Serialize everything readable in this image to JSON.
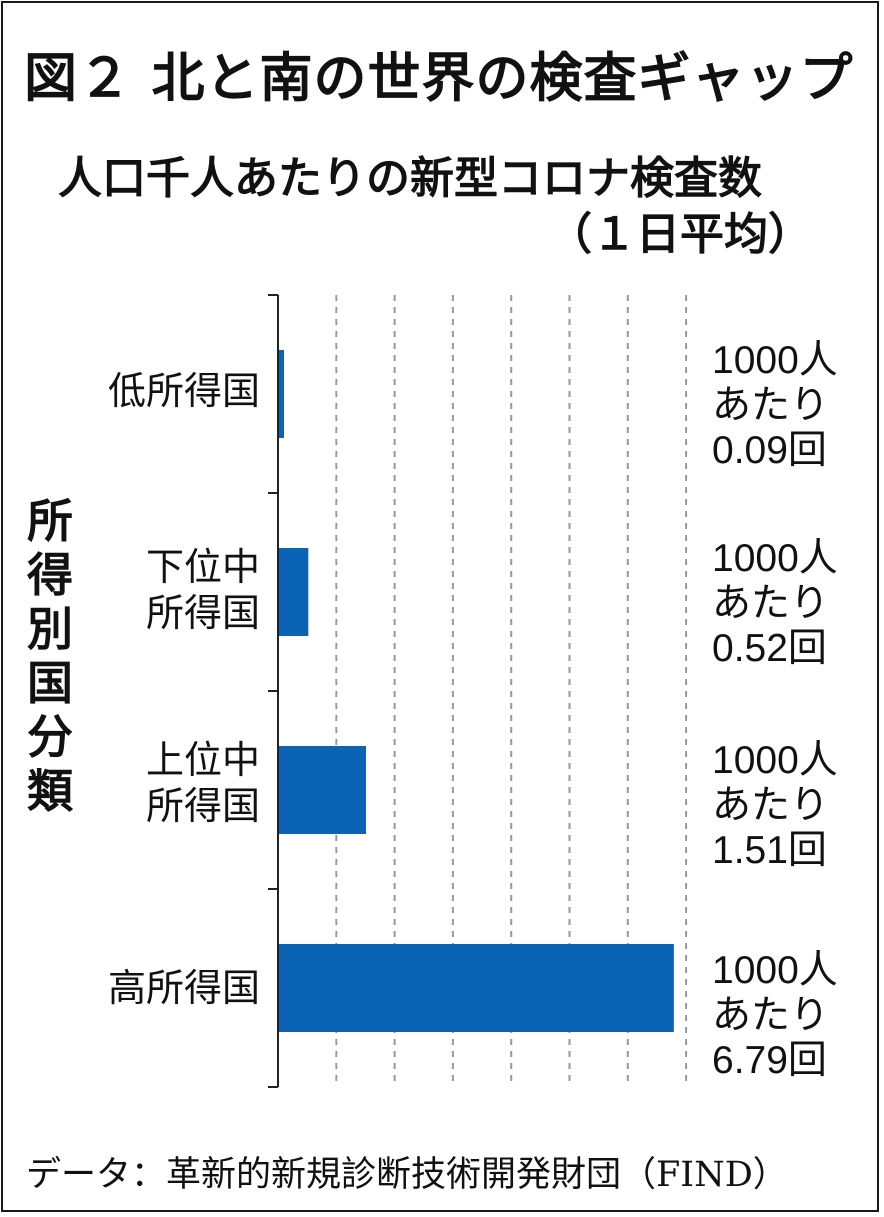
{
  "title": "図２ 北と南の世界の検査ギャップ",
  "subtitle_line1": "人口千人あたりの新型コロナ検査数",
  "subtitle_line2": "（１日平均）",
  "source": "データ：革新的新規診断技術開発財団（FIND）",
  "colors": {
    "bar": "#0a63b5",
    "text": "#111111",
    "grid": "#999999",
    "axis": "#222222"
  },
  "chart_data": {
    "type": "bar",
    "orientation": "horizontal",
    "ylabel": "所得別国分類",
    "categories": [
      {
        "line1": "低所得国",
        "line2": ""
      },
      {
        "line1": "下位中",
        "line2": "所得国"
      },
      {
        "line1": "上位中",
        "line2": "所得国"
      },
      {
        "line1": "高所得国",
        "line2": ""
      }
    ],
    "values": [
      0.09,
      0.52,
      1.51,
      6.79
    ],
    "value_labels": [
      {
        "line1": "1000人",
        "line2": "あたり",
        "line3": "0.09回"
      },
      {
        "line1": "1000人",
        "line2": "あたり",
        "line3": "0.52回"
      },
      {
        "line1": "1000人",
        "line2": "あたり",
        "line3": "1.51回"
      },
      {
        "line1": "1000人",
        "line2": "あたり",
        "line3": "6.79回"
      }
    ],
    "xlim": [
      0,
      7
    ],
    "grid": true,
    "gridlines_at": [
      1,
      2,
      3,
      4,
      5,
      6,
      7
    ],
    "legend": "none"
  }
}
